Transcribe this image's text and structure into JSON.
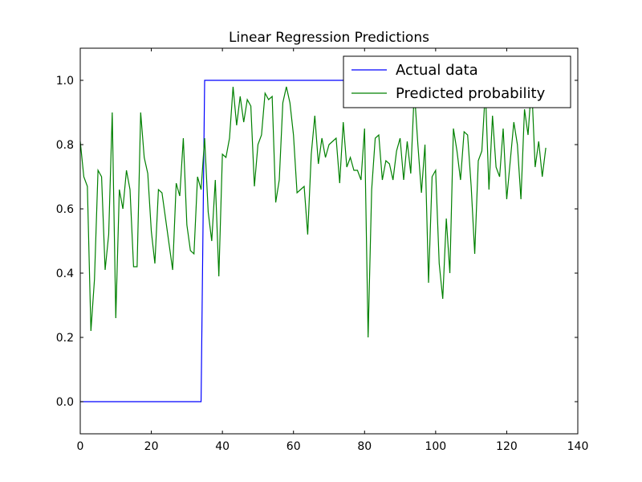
{
  "chart_data": {
    "type": "line",
    "title": "Linear Regression Predictions",
    "xlabel": "",
    "ylabel": "",
    "xlim": [
      0,
      140
    ],
    "ylim": [
      -0.1,
      1.1
    ],
    "xticks": [
      0,
      20,
      40,
      60,
      80,
      100,
      120,
      140
    ],
    "yticks": [
      0.0,
      0.2,
      0.4,
      0.6,
      0.8,
      1.0
    ],
    "xtick_labels": [
      "0",
      "20",
      "40",
      "60",
      "80",
      "100",
      "120",
      "140"
    ],
    "ytick_labels": [
      "0.0",
      "0.2",
      "0.4",
      "0.6",
      "0.8",
      "1.0"
    ],
    "grid": false,
    "legend_position": "top-right",
    "series": [
      {
        "name": "Actual data",
        "color": "#0000ff",
        "x": [
          0,
          34,
          35,
          131
        ],
        "y": [
          0,
          0,
          1,
          1
        ]
      },
      {
        "name": "Predicted probability",
        "color": "#008000",
        "x": [
          0,
          1,
          2,
          3,
          4,
          5,
          6,
          7,
          8,
          9,
          10,
          11,
          12,
          13,
          14,
          15,
          16,
          17,
          18,
          19,
          20,
          21,
          22,
          23,
          24,
          25,
          26,
          27,
          28,
          29,
          30,
          31,
          32,
          33,
          34,
          35,
          36,
          37,
          38,
          39,
          40,
          41,
          42,
          43,
          44,
          45,
          46,
          47,
          48,
          49,
          50,
          51,
          52,
          53,
          54,
          55,
          56,
          57,
          58,
          59,
          60,
          61,
          62,
          63,
          64,
          65,
          66,
          67,
          68,
          69,
          70,
          71,
          72,
          73,
          74,
          75,
          76,
          77,
          78,
          79,
          80,
          81,
          82,
          83,
          84,
          85,
          86,
          87,
          88,
          89,
          90,
          91,
          92,
          93,
          94,
          95,
          96,
          97,
          98,
          99,
          100,
          101,
          102,
          103,
          104,
          105,
          106,
          107,
          108,
          109,
          110,
          111,
          112,
          113,
          114,
          115,
          116,
          117,
          118,
          119,
          120,
          121,
          122,
          123,
          124,
          125,
          126,
          127,
          128,
          129,
          130,
          131
        ],
        "y": [
          0.81,
          0.7,
          0.67,
          0.22,
          0.38,
          0.72,
          0.7,
          0.41,
          0.52,
          0.9,
          0.26,
          0.66,
          0.6,
          0.72,
          0.66,
          0.42,
          0.42,
          0.9,
          0.76,
          0.71,
          0.53,
          0.43,
          0.66,
          0.65,
          0.57,
          0.49,
          0.41,
          0.68,
          0.64,
          0.82,
          0.55,
          0.47,
          0.46,
          0.7,
          0.66,
          0.82,
          0.59,
          0.5,
          0.69,
          0.39,
          0.77,
          0.76,
          0.82,
          0.98,
          0.86,
          0.95,
          0.87,
          0.94,
          0.92,
          0.67,
          0.8,
          0.83,
          0.96,
          0.94,
          0.95,
          0.62,
          0.69,
          0.93,
          0.98,
          0.93,
          0.83,
          0.65,
          0.66,
          0.67,
          0.52,
          0.77,
          0.89,
          0.74,
          0.82,
          0.76,
          0.8,
          0.81,
          0.82,
          0.68,
          0.87,
          0.73,
          0.76,
          0.72,
          0.72,
          0.69,
          0.85,
          0.2,
          0.66,
          0.82,
          0.83,
          0.69,
          0.75,
          0.74,
          0.69,
          0.78,
          0.82,
          0.69,
          0.81,
          0.71,
          0.97,
          0.8,
          0.65,
          0.8,
          0.37,
          0.7,
          0.72,
          0.43,
          0.32,
          0.57,
          0.4,
          0.85,
          0.78,
          0.69,
          0.84,
          0.83,
          0.67,
          0.46,
          0.75,
          0.78,
          0.97,
          0.66,
          0.89,
          0.73,
          0.7,
          0.85,
          0.63,
          0.75,
          0.87,
          0.8,
          0.63,
          0.91,
          0.83,
          0.99,
          0.73,
          0.81,
          0.7,
          0.79
        ]
      }
    ]
  }
}
